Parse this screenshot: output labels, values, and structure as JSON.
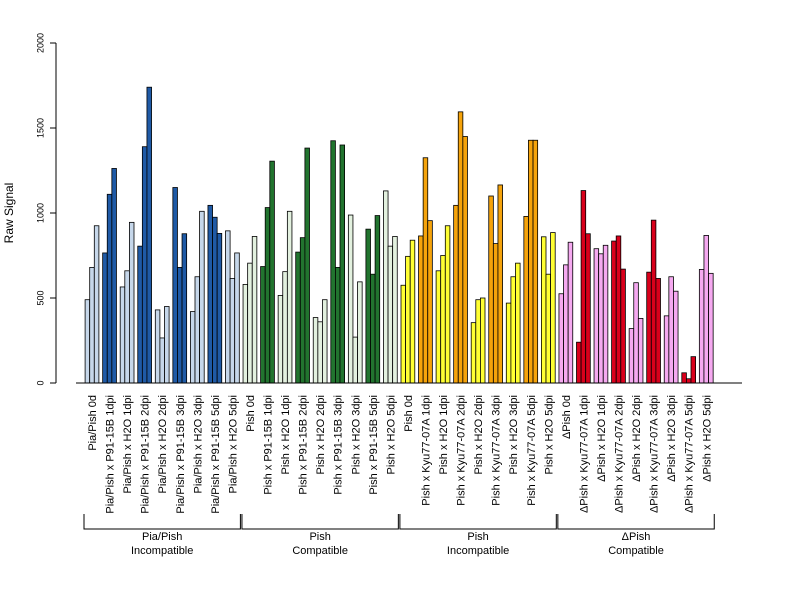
{
  "chart_data": {
    "type": "bar",
    "ylabel": "Raw Signal",
    "ylim": [
      0,
      2000
    ],
    "yticks": [
      0,
      500,
      1000,
      1500,
      2000
    ],
    "palette": {
      "light_blue": "#c6d7ea",
      "dark_blue": "#1f5aa6",
      "light_green": "#e3f1df",
      "dark_green": "#22742f",
      "yellow": "#ffff33",
      "orange": "#f5a30b",
      "light_pink": "#f5a9f0",
      "red": "#d9001b"
    },
    "categories": [
      {
        "label": "Pia/Pish 0d",
        "color": "light_blue",
        "values": [
          490,
          680,
          925
        ]
      },
      {
        "label": "Pia/Pish x P91-15B 1dpi",
        "color": "dark_blue",
        "values": [
          765,
          1110,
          1262
        ]
      },
      {
        "label": "Pia/Pish x H2O 1dpi",
        "color": "light_blue",
        "values": [
          565,
          660,
          945
        ]
      },
      {
        "label": "Pia/Pish x P91-15B 2dpi",
        "color": "dark_blue",
        "values": [
          805,
          1390,
          1740
        ]
      },
      {
        "label": "Pia/Pish x H2O 2dpi",
        "color": "light_blue",
        "values": [
          430,
          265,
          450
        ]
      },
      {
        "label": "Pia/Pish x P91-15B 3dpi",
        "color": "dark_blue",
        "values": [
          1150,
          680,
          878
        ]
      },
      {
        "label": "Pia/Pish x H2O 3dpi",
        "color": "light_blue",
        "values": [
          420,
          625,
          1010
        ]
      },
      {
        "label": "Pia/Pish x P91-15B 5dpi",
        "color": "dark_blue",
        "values": [
          1045,
          975,
          880
        ]
      },
      {
        "label": "Pia/Pish x H2O 5dpi",
        "color": "light_blue",
        "values": [
          895,
          615,
          765
        ]
      },
      {
        "label": "Pish 0d",
        "color": "light_green",
        "values": [
          580,
          705,
          862
        ]
      },
      {
        "label": "Pish x P91-15B 1dpi",
        "color": "dark_green",
        "values": [
          685,
          1032,
          1305
        ]
      },
      {
        "label": "Pish x H2O 1dpi",
        "color": "light_green",
        "values": [
          515,
          655,
          1010
        ]
      },
      {
        "label": "Pish x P91-15B 2dpi",
        "color": "dark_green",
        "values": [
          770,
          855,
          1382
        ]
      },
      {
        "label": "Pish x H2O 2dpi",
        "color": "light_green",
        "values": [
          385,
          360,
          490
        ]
      },
      {
        "label": "Pish x P91-15B 3dpi",
        "color": "dark_green",
        "values": [
          1425,
          680,
          1400
        ]
      },
      {
        "label": "Pish x H2O 3dpi",
        "color": "light_green",
        "values": [
          988,
          270,
          595
        ]
      },
      {
        "label": "Pish x P91-15B 5dpi",
        "color": "dark_green",
        "values": [
          905,
          640,
          985
        ]
      },
      {
        "label": "Pish x H2O 5dpi",
        "color": "light_green",
        "values": [
          1130,
          805,
          862
        ]
      },
      {
        "label": "Pish 0d",
        "color": "yellow",
        "values": [
          575,
          745,
          840
        ]
      },
      {
        "label": "Pish x Kyu77-07A 1dpi",
        "color": "orange",
        "values": [
          865,
          1325,
          955
        ]
      },
      {
        "label": "Pish x H2O 1dpi",
        "color": "yellow",
        "values": [
          660,
          750,
          925
        ]
      },
      {
        "label": "Pish x Kyu77-07A 2dpi",
        "color": "orange",
        "values": [
          1045,
          1595,
          1450
        ]
      },
      {
        "label": "Pish x H2O 2dpi",
        "color": "yellow",
        "values": [
          355,
          490,
          500
        ]
      },
      {
        "label": "Pish x Kyu77-07A 3dpi",
        "color": "orange",
        "values": [
          1100,
          820,
          1165
        ]
      },
      {
        "label": "Pish x H2O 3dpi",
        "color": "yellow",
        "values": [
          470,
          625,
          705
        ]
      },
      {
        "label": "Pish x Kyu77-07A 5dpi",
        "color": "orange",
        "values": [
          980,
          1428,
          1428
        ]
      },
      {
        "label": "Pish x H2O 5dpi",
        "color": "yellow",
        "values": [
          860,
          640,
          885
        ]
      },
      {
        "label": "ΔPish 0d",
        "color": "light_pink",
        "values": [
          525,
          695,
          828
        ]
      },
      {
        "label": "ΔPish x Kyu77-07A 1dpi",
        "color": "red",
        "values": [
          240,
          1132,
          878
        ]
      },
      {
        "label": "ΔPish x H2O 1dpi",
        "color": "light_pink",
        "values": [
          790,
          760,
          810
        ]
      },
      {
        "label": "ΔPish x Kyu77-07A 2dpi",
        "color": "red",
        "values": [
          835,
          865,
          670
        ]
      },
      {
        "label": "ΔPish x H2O 2dpi",
        "color": "light_pink",
        "values": [
          320,
          590,
          380
        ]
      },
      {
        "label": "ΔPish x Kyu77-07A 3dpi",
        "color": "red",
        "values": [
          652,
          958,
          615
        ]
      },
      {
        "label": "ΔPish x H2O 3dpi",
        "color": "light_pink",
        "values": [
          395,
          625,
          540
        ]
      },
      {
        "label": "ΔPish x Kyu77-07A 5dpi",
        "color": "red",
        "values": [
          60,
          25,
          155
        ]
      },
      {
        "label": "ΔPish x H2O 5dpi",
        "color": "light_pink",
        "values": [
          668,
          868,
          645
        ]
      }
    ],
    "groups": [
      {
        "line1": "Pia/Pish",
        "line2": "Incompatible",
        "count": 9
      },
      {
        "line1": "Pish",
        "line2": "Compatible",
        "count": 9
      },
      {
        "line1": "Pish",
        "line2": "Incompatible",
        "count": 9
      },
      {
        "line1": "ΔPish",
        "line2": "Compatible",
        "count": 9
      }
    ]
  }
}
